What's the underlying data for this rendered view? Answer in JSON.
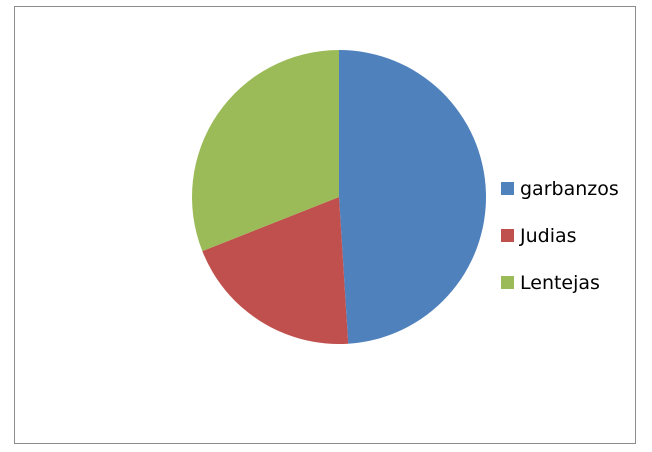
{
  "chart_data": {
    "type": "pie",
    "title": "",
    "categories": [
      "garbanzos",
      "Judias",
      "Lentejas"
    ],
    "values": [
      49,
      20,
      31
    ],
    "colors": [
      "#4f81bd",
      "#c0504d",
      "#9bbb59"
    ],
    "start_angle": "12 o'clock, clockwise",
    "legend": {
      "position": "right",
      "entries": [
        "garbanzos",
        "Judias",
        "Lentejas"
      ]
    }
  }
}
